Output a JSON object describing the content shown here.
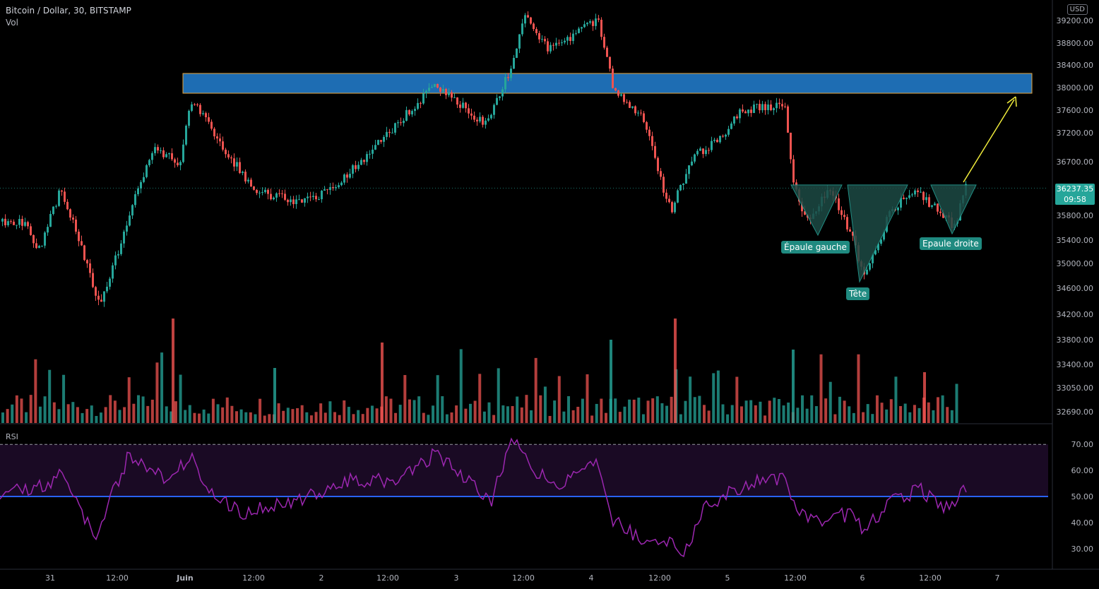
{
  "header": {
    "symbol": "Bitcoin / Dollar, 30, BITSTAMP",
    "volume_label": "Vol",
    "currency": "USD",
    "rsi_label": "RSI"
  },
  "last_price": {
    "value": "36237.35",
    "countdown": "09:58"
  },
  "annotations": {
    "left_shoulder": "Épaule gauche",
    "head": "Tête",
    "right_shoulder": "Epaule droite"
  },
  "colors": {
    "up": "#26a69a",
    "down": "#ef5350",
    "resistance_zone": "#1e6db3",
    "resistance_border": "#e8a33a",
    "arrow": "#f2ee3c",
    "rsi_line": "#9c27b0",
    "rsi_band": "#1a0a24",
    "rsi_mid": "#2962ff",
    "pattern_fill": "#1d4a45"
  },
  "chart_data": [
    {
      "type": "candlestick",
      "title": "Bitcoin / Dollar, 30, BITSTAMP",
      "y_ticks": [
        39200,
        38800,
        38400,
        38000,
        37600,
        37200,
        36700,
        36200,
        35800,
        35400,
        35000,
        34600,
        34200,
        33800,
        33400,
        33050,
        32690
      ],
      "ylim": [
        32500,
        39400
      ],
      "x_ticks": [
        "31",
        "12:00",
        "Juin",
        "12:00",
        "2",
        "12:00",
        "3",
        "12:00",
        "4",
        "12:00",
        "5",
        "12:00",
        "6",
        "12:00",
        "7"
      ],
      "key_levels": [
        {
          "x": "30 May 20:00",
          "y": 35700
        },
        {
          "x": "30 May 22:00",
          "y": 35200
        },
        {
          "x": "31 May 02:00",
          "y": 36250
        },
        {
          "x": "31 May 09:00",
          "y": 34300
        },
        {
          "x": "31 May 18:00",
          "y": 36900
        },
        {
          "x": "31 May 23:00",
          "y": 36700
        },
        {
          "x": "1 Jun 01:00",
          "y": 37800
        },
        {
          "x": "1 Jun 12:00",
          "y": 36200
        },
        {
          "x": "1 Jun 20:00",
          "y": 36000
        },
        {
          "x": "2 Jun 02:00",
          "y": 36200
        },
        {
          "x": "2 Jun 12:00",
          "y": 37200
        },
        {
          "x": "2 Jun 20:00",
          "y": 38050
        },
        {
          "x": "3 Jun 02:00",
          "y": 37600
        },
        {
          "x": "3 Jun 05:00",
          "y": 37350
        },
        {
          "x": "3 Jun 10:00",
          "y": 38400
        },
        {
          "x": "3 Jun 12:00",
          "y": 39300
        },
        {
          "x": "3 Jun 16:00",
          "y": 38700
        },
        {
          "x": "3 Jun 20:00",
          "y": 38900
        },
        {
          "x": "4 Jun 01:00",
          "y": 39200
        },
        {
          "x": "4 Jun 04:00",
          "y": 37900
        },
        {
          "x": "4 Jun 09:00",
          "y": 37500
        },
        {
          "x": "4 Jun 12:00",
          "y": 36400
        },
        {
          "x": "4 Jun 14:00",
          "y": 35900
        },
        {
          "x": "4 Jun 18:00",
          "y": 36800
        },
        {
          "x": "4 Jun 23:00",
          "y": 37100
        },
        {
          "x": "5 Jun 02:00",
          "y": 37600
        },
        {
          "x": "5 Jun 10:00",
          "y": 37700
        },
        {
          "x": "5 Jun 11:30",
          "y": 36400
        },
        {
          "x": "5 Jun 14:00",
          "y": 35700
        },
        {
          "x": "5 Jun 18:00",
          "y": 36200
        },
        {
          "x": "5 Jun 22:00",
          "y": 35500
        },
        {
          "x": "6 Jun 00:00",
          "y": 34800
        },
        {
          "x": "6 Jun 05:00",
          "y": 35900
        },
        {
          "x": "6 Jun 09:00",
          "y": 36200
        },
        {
          "x": "6 Jun 13:00",
          "y": 35900
        },
        {
          "x": "6 Jun 16:00",
          "y": 35600
        },
        {
          "x": "6 Jun 18:00",
          "y": 36237.35
        }
      ],
      "resistance_zone": [
        37900,
        38250
      ],
      "neckline": 36250,
      "pattern": "Épaule gauche / Tête / Epaule droite"
    },
    {
      "type": "bar",
      "title": "Vol",
      "values": []
    },
    {
      "type": "line",
      "title": "RSI",
      "y_ticks": [
        70,
        60,
        50,
        40,
        30
      ],
      "ylim": [
        22,
        75
      ],
      "band": [
        50,
        70
      ],
      "key_levels": [
        {
          "x": "30 May 20:00",
          "y": 52
        },
        {
          "x": "31 May 02:00",
          "y": 58
        },
        {
          "x": "31 May 08:00",
          "y": 35
        },
        {
          "x": "31 May 14:00",
          "y": 66
        },
        {
          "x": "31 May 20:00",
          "y": 57
        },
        {
          "x": "1 Jun 01:00",
          "y": 65
        },
        {
          "x": "1 Jun 04:00",
          "y": 52
        },
        {
          "x": "1 Jun 10:00",
          "y": 44
        },
        {
          "x": "1 Jun 18:00",
          "y": 47
        },
        {
          "x": "2 Jun 00:00",
          "y": 52
        },
        {
          "x": "2 Jun 06:00",
          "y": 57
        },
        {
          "x": "2 Jun 13:00",
          "y": 55
        },
        {
          "x": "2 Jun 20:00",
          "y": 66
        },
        {
          "x": "3 Jun 03:00",
          "y": 55
        },
        {
          "x": "3 Jun 06:00",
          "y": 48
        },
        {
          "x": "3 Jun 10:00",
          "y": 72
        },
        {
          "x": "3 Jun 14:00",
          "y": 60
        },
        {
          "x": "3 Jun 18:00",
          "y": 55
        },
        {
          "x": "4 Jun 01:00",
          "y": 62
        },
        {
          "x": "4 Jun 03:00",
          "y": 42
        },
        {
          "x": "4 Jun 10:00",
          "y": 32
        },
        {
          "x": "4 Jun 14:00",
          "y": 33
        },
        {
          "x": "4 Jun 16:00",
          "y": 28
        },
        {
          "x": "4 Jun 20:00",
          "y": 46
        },
        {
          "x": "5 Jun 04:00",
          "y": 56
        },
        {
          "x": "5 Jun 10:00",
          "y": 57
        },
        {
          "x": "5 Jun 12:00",
          "y": 43
        },
        {
          "x": "5 Jun 18:00",
          "y": 41
        },
        {
          "x": "5 Jun 22:00",
          "y": 44
        },
        {
          "x": "6 Jun 00:00",
          "y": 36
        },
        {
          "x": "6 Jun 04:00",
          "y": 47
        },
        {
          "x": "6 Jun 10:00",
          "y": 53
        },
        {
          "x": "6 Jun 14:00",
          "y": 44
        },
        {
          "x": "6 Jun 18:00",
          "y": 53
        }
      ]
    }
  ]
}
